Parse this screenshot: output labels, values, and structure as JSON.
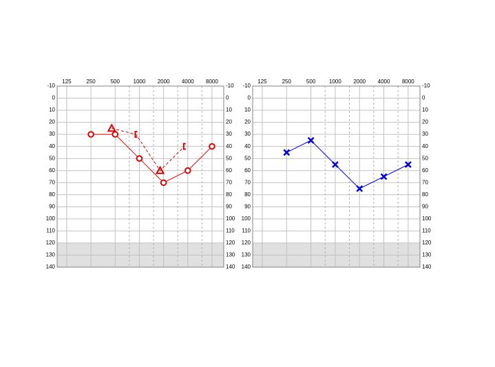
{
  "chart_data": [
    {
      "type": "line",
      "xscale": "log",
      "xlim": [
        95,
        11200
      ],
      "xticks": [
        125,
        250,
        500,
        1000,
        2000,
        4000,
        8000
      ],
      "xminor": [
        750,
        1500,
        3000,
        6000
      ],
      "ylim": [
        -10,
        140
      ],
      "yinvert": true,
      "yticks": [
        -10,
        0,
        10,
        20,
        30,
        40,
        50,
        60,
        70,
        80,
        90,
        100,
        110,
        120,
        130,
        140
      ],
      "shade": [
        120,
        140
      ],
      "grid": true,
      "series": [
        {
          "color": "#e00000",
          "markers": "circle",
          "dash": false,
          "x": [
            250,
            500,
            1000,
            2000,
            4000,
            8000
          ],
          "values": [
            30,
            30,
            50,
            70,
            60,
            40
          ]
        },
        {
          "color": "#e00000",
          "markers": [
            "triangle",
            "bracket",
            "triangle",
            "bracket"
          ],
          "dash": true,
          "x": [
            500,
            1000,
            2000,
            4000
          ],
          "values": [
            25,
            30,
            60,
            40
          ]
        }
      ]
    },
    {
      "type": "line",
      "xscale": "log",
      "xlim": [
        95,
        11200
      ],
      "xticks": [
        125,
        250,
        500,
        1000,
        2000,
        4000,
        8000
      ],
      "xminor": [
        750,
        1500,
        3000,
        6000
      ],
      "ylim": [
        -10,
        140
      ],
      "yinvert": true,
      "yticks": [
        -10,
        0,
        10,
        20,
        30,
        40,
        50,
        60,
        70,
        80,
        90,
        100,
        110,
        120,
        130,
        140
      ],
      "shade": [
        120,
        140
      ],
      "grid": true,
      "series": [
        {
          "color": "#0000e0",
          "markers": "x",
          "dash": false,
          "x": [
            250,
            500,
            1000,
            2000,
            4000,
            8000
          ],
          "values": [
            45,
            35,
            55,
            75,
            65,
            55
          ]
        }
      ]
    }
  ]
}
